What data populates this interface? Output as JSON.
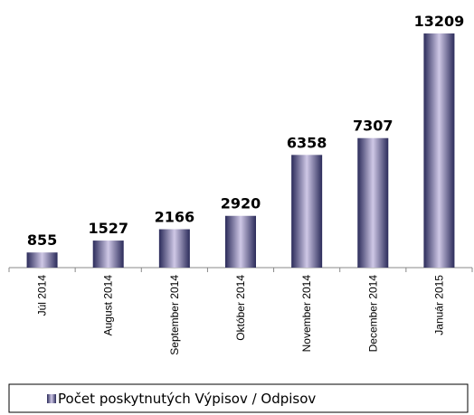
{
  "chart_data": {
    "type": "bar",
    "categories": [
      "Júl 2014",
      "August 2014",
      "September 2014",
      "Október 2014",
      "November 2014",
      "December 2014",
      "Január 2015"
    ],
    "series": [
      {
        "name": "Počet poskytnutých Výpisov / Odpisov",
        "color": "#2b2b5a",
        "values": [
          855,
          1527,
          2166,
          2920,
          6358,
          7307,
          13209
        ]
      }
    ],
    "ylim": [
      0,
      14000
    ],
    "legend": "bottom",
    "data_labels": true
  }
}
